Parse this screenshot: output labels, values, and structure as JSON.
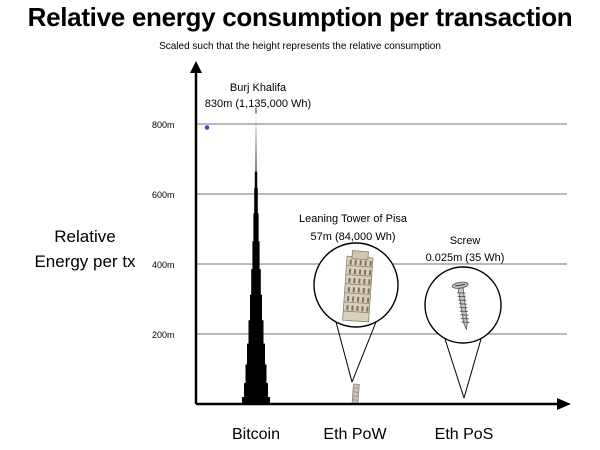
{
  "title": "Relative energy consumption per transaction",
  "subtitle": "Scaled such that the height represents the relative consumption",
  "ylabel_lines": [
    "Relative",
    "Energy per tx"
  ],
  "colors": {
    "bar": "#000000",
    "grid": "#444444",
    "marker": "#3b4bbf",
    "tower": "#c9c1ae"
  },
  "chart_data": {
    "type": "bar",
    "title": "Relative energy consumption per transaction",
    "subtitle": "Scaled such that the height represents the relative consumption",
    "ylabel": "Relative Energy per tx",
    "xlabel": "",
    "categories": [
      "Bitcoin",
      "Eth PoW",
      "Eth PoS"
    ],
    "values": [
      830,
      57,
      0.025
    ],
    "unit": "m",
    "energy_wh": [
      1135000,
      84000,
      35
    ],
    "ylim": [
      0,
      1000
    ],
    "yticks": [
      200,
      400,
      600,
      800
    ],
    "ytick_labels": [
      "200m",
      "400m",
      "600m",
      "800m"
    ],
    "grid": true,
    "marker_value": 790,
    "annotations": [
      {
        "line1": "Burj Khalifa",
        "line2": "830m (1,135,000 Wh)",
        "icon": "skyscraper-icon"
      },
      {
        "line1": "Leaning Tower of Pisa",
        "line2": "57m (84,000 Wh)",
        "icon": "leaning-tower-icon"
      },
      {
        "line1": "Screw",
        "line2": "0.025m (35 Wh)",
        "icon": "screw-icon"
      }
    ]
  }
}
